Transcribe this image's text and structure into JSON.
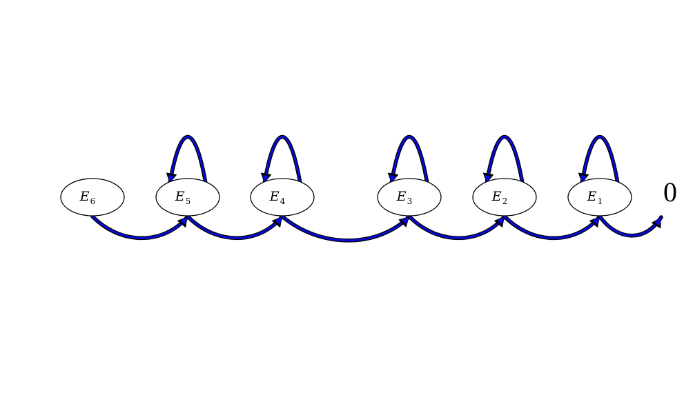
{
  "nodes": [
    {
      "id": "E6",
      "base": "E",
      "sub": "6"
    },
    {
      "id": "E5",
      "base": "E",
      "sub": "5"
    },
    {
      "id": "E4",
      "base": "E",
      "sub": "4"
    },
    {
      "id": "E3",
      "base": "E",
      "sub": "3"
    },
    {
      "id": "E2",
      "base": "E",
      "sub": "2"
    },
    {
      "id": "E1",
      "base": "E",
      "sub": "1"
    }
  ],
  "terminal": {
    "label": "0"
  },
  "self_loops": [
    "E5",
    "E4",
    "E3",
    "E2",
    "E1"
  ],
  "transitions": [
    {
      "from": "E6",
      "to": "E5"
    },
    {
      "from": "E5",
      "to": "E4"
    },
    {
      "from": "E4",
      "to": "E3"
    },
    {
      "from": "E3",
      "to": "E2"
    },
    {
      "from": "E2",
      "to": "E1"
    },
    {
      "from": "E1",
      "to": "0"
    }
  ],
  "colors": {
    "arrow_fill": "#0a0ad8",
    "arrow_outline": "#000000",
    "node_stroke": "#000000"
  }
}
